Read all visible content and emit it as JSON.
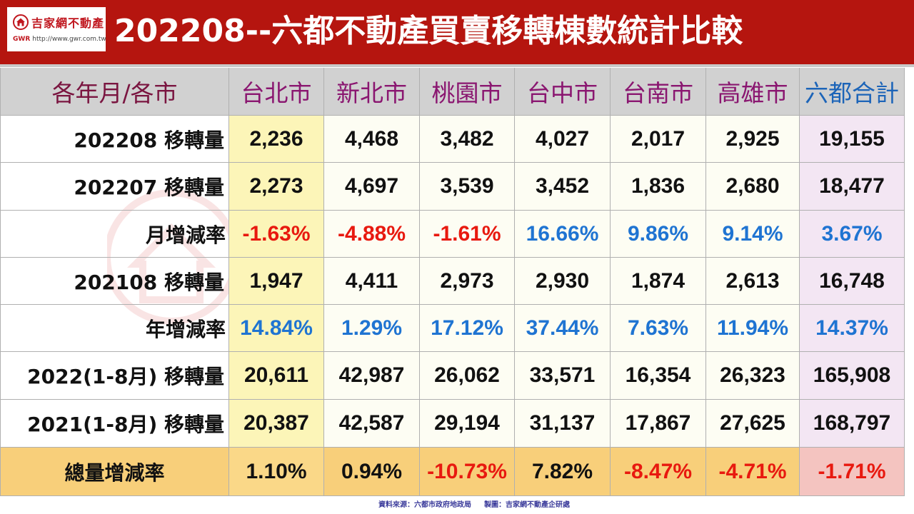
{
  "header": {
    "logo_name": "吉家網不動產",
    "logo_brand": "GWR",
    "logo_url": "http://www.gwr.com.tw",
    "title": "202208--六都不動產買賣移轉棟數統計比較",
    "bg_color": "#b5150f"
  },
  "table": {
    "corner_label": "各年月/各市",
    "columns": [
      "台北市",
      "新北市",
      "桃園市",
      "台中市",
      "台南市",
      "高雄市",
      "六都合計"
    ],
    "rows": [
      {
        "label": "202208 移轉量",
        "values": [
          "2,236",
          "4,468",
          "3,482",
          "4,027",
          "2,017",
          "2,925",
          "19,155"
        ]
      },
      {
        "label": "202207 移轉量",
        "values": [
          "2,273",
          "4,697",
          "3,539",
          "3,452",
          "1,836",
          "2,680",
          "18,477"
        ]
      },
      {
        "label": "月增減率",
        "values": [
          "-1.63%",
          "-4.88%",
          "-1.61%",
          "16.66%",
          "9.86%",
          "9.14%",
          "3.67%"
        ]
      },
      {
        "label": "202108 移轉量",
        "values": [
          "1,947",
          "4,411",
          "2,973",
          "2,930",
          "1,874",
          "2,613",
          "16,748"
        ]
      },
      {
        "label": "年增減率",
        "values": [
          "14.84%",
          "1.29%",
          "17.12%",
          "37.44%",
          "7.63%",
          "11.94%",
          "14.37%"
        ]
      },
      {
        "label": "2022(1-8月) 移轉量",
        "values": [
          "20,611",
          "42,987",
          "26,062",
          "33,571",
          "16,354",
          "26,323",
          "165,908"
        ]
      },
      {
        "label": "2021(1-8月) 移轉量",
        "values": [
          "20,387",
          "42,587",
          "29,194",
          "31,137",
          "17,867",
          "27,625",
          "168,797"
        ]
      },
      {
        "label": "總量增減率",
        "values": [
          "1.10%",
          "0.94%",
          "-10.73%",
          "7.82%",
          "-8.47%",
          "-4.71%",
          "-1.71%"
        ]
      }
    ],
    "colors": {
      "negative": "#e8190f",
      "positive": "#1f74d2"
    }
  },
  "footer": {
    "source": "資料來源：六都市政府地政局",
    "maker": "製圖：吉家網不動產企研處"
  }
}
